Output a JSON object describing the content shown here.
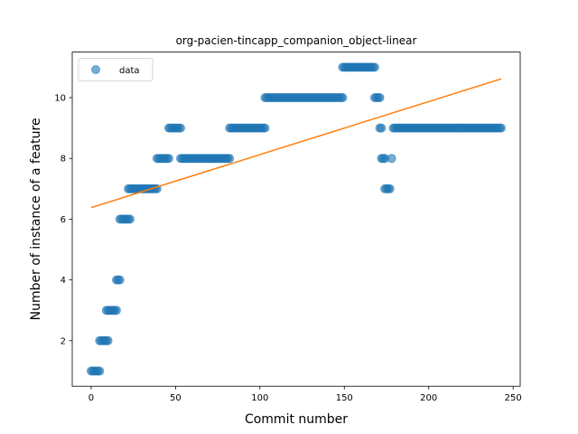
{
  "chart_data": {
    "type": "scatter",
    "title": "org-pacien-tincapp_companion_object-linear",
    "xlabel": "Commit number",
    "ylabel": "Number of instance of a feature",
    "xlim": [
      -11.2,
      254.2
    ],
    "ylim": [
      0.5,
      11.5
    ],
    "xticks": [
      0,
      50,
      100,
      150,
      200,
      250
    ],
    "yticks": [
      2,
      4,
      6,
      8,
      10
    ],
    "grid": false,
    "legend": {
      "placement": "upper-left",
      "entries": [
        "data"
      ]
    },
    "colors": {
      "data": "#1f77b4",
      "fit": "#ff7f0e"
    },
    "series": [
      {
        "name": "data",
        "kind": "scatter",
        "segments": [
          {
            "x_start": 0,
            "x_end": 5,
            "y": 1
          },
          {
            "x_start": 5,
            "x_end": 10,
            "y": 2
          },
          {
            "x_start": 9,
            "x_end": 15,
            "y": 3
          },
          {
            "x_start": 15,
            "x_end": 17,
            "y": 4
          },
          {
            "x_start": 17,
            "x_end": 23,
            "y": 6
          },
          {
            "x_start": 22,
            "x_end": 39,
            "y": 7
          },
          {
            "x_start": 39,
            "x_end": 46,
            "y": 8
          },
          {
            "x_start": 46,
            "x_end": 53,
            "y": 9
          },
          {
            "x_start": 53,
            "x_end": 82,
            "y": 8
          },
          {
            "x_start": 82,
            "x_end": 103,
            "y": 9
          },
          {
            "x_start": 103,
            "x_end": 149,
            "y": 10
          },
          {
            "x_start": 149,
            "x_end": 168,
            "y": 11
          },
          {
            "x_start": 168,
            "x_end": 171,
            "y": 10
          },
          {
            "x_start": 171,
            "x_end": 172,
            "y": 9
          },
          {
            "x_start": 172,
            "x_end": 174,
            "y": 8
          },
          {
            "x_start": 174,
            "x_end": 177,
            "y": 7
          },
          {
            "x_start": 178,
            "x_end": 178,
            "y": 8
          },
          {
            "x_start": 179,
            "x_end": 243,
            "y": 9
          }
        ]
      },
      {
        "name": "",
        "kind": "line",
        "x": [
          0,
          243
        ],
        "y": [
          6.38,
          10.62
        ]
      }
    ]
  }
}
